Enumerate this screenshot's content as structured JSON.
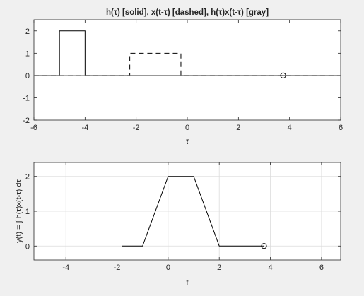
{
  "window": {
    "background": "#f0f0f0"
  },
  "chart_data": [
    {
      "type": "line",
      "title": "h(τ) [solid], x(t-τ) [dashed], h(τ)x(t-τ) [gray]",
      "xlabel": "τ",
      "ylabel": "",
      "xlim": [
        -6,
        6
      ],
      "ylim": [
        -2,
        2.5
      ],
      "xticks": [
        -6,
        -4,
        -2,
        0,
        2,
        4,
        6
      ],
      "xtick_labels": [
        "-6",
        "-4",
        "-2",
        "0",
        "2",
        "4",
        "6"
      ],
      "yticks": [
        -2,
        -1,
        0,
        1,
        2
      ],
      "ytick_labels": [
        "-2",
        "-1",
        "0",
        "1",
        "2"
      ],
      "grid": false,
      "series": [
        {
          "style": "solid",
          "color": "#000000",
          "x": [
            -6,
            -5,
            -5,
            -4,
            -4,
            6
          ],
          "y": [
            0,
            0,
            2,
            2,
            0,
            0
          ]
        },
        {
          "style": "dashed",
          "color": "#000000",
          "x": [
            -6,
            -2.25,
            -2.25,
            -0.25,
            -0.25,
            6
          ],
          "y": [
            0,
            0,
            1,
            1,
            0,
            0
          ]
        },
        {
          "style": "solid",
          "color": "#808080",
          "x": [
            -6,
            6
          ],
          "y": [
            0,
            0
          ]
        }
      ],
      "markers": [
        {
          "x": 3.75,
          "y": 0,
          "shape": "circle"
        }
      ]
    },
    {
      "type": "line",
      "title": "",
      "xlabel": "t",
      "ylabel": "y(t) = ∫ h(τ)x(t-τ) dτ",
      "xlim": [
        -5.25,
        6.75
      ],
      "ylim": [
        -0.4,
        2.4
      ],
      "xticks": [
        -4,
        -2,
        0,
        2,
        4,
        6
      ],
      "xtick_labels": [
        "-4",
        "-2",
        "0",
        "2",
        "4",
        "6"
      ],
      "yticks": [
        0,
        1,
        2
      ],
      "ytick_labels": [
        "0",
        "1",
        "2"
      ],
      "grid": true,
      "series": [
        {
          "style": "solid",
          "color": "#000000",
          "x": [
            -1.8,
            -1.0,
            0.0,
            1.0,
            2.0,
            3.75
          ],
          "y": [
            0,
            0,
            2,
            2,
            0,
            0
          ]
        }
      ],
      "markers": [
        {
          "x": 3.75,
          "y": 0,
          "shape": "circle"
        }
      ]
    }
  ]
}
